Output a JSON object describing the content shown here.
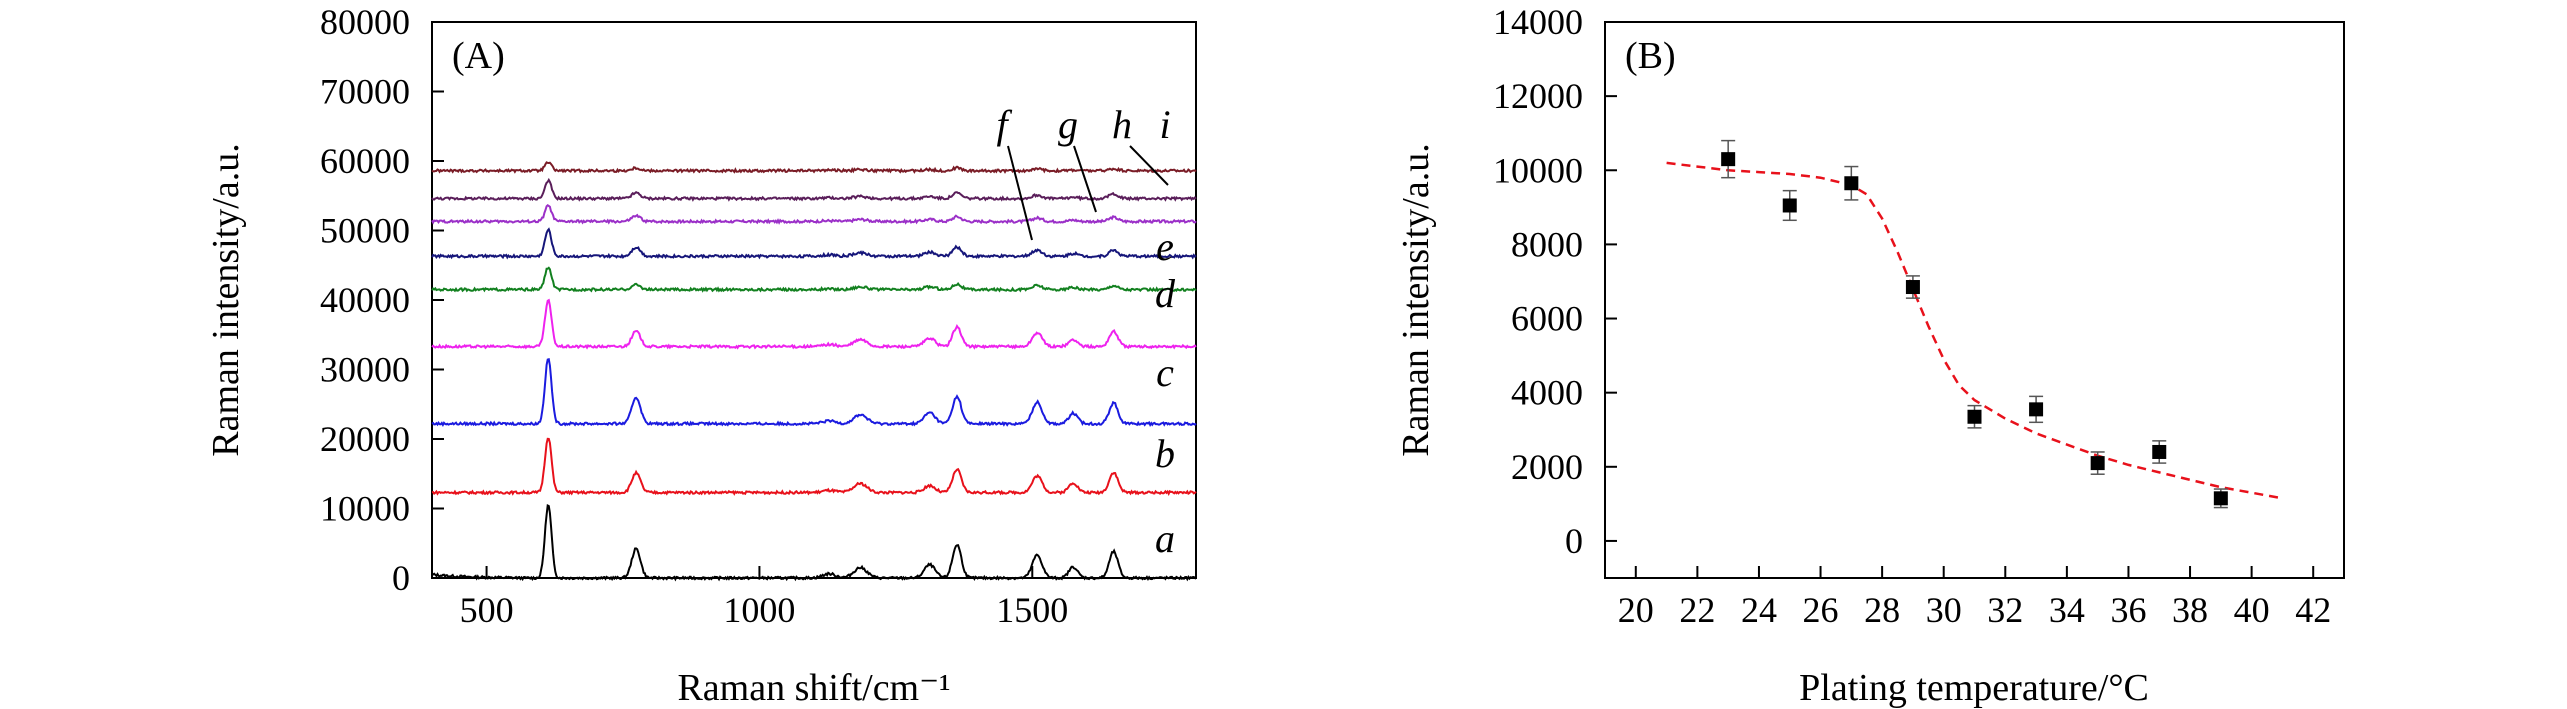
{
  "chart_data": [
    {
      "panel_label": "(A)",
      "type": "line",
      "xlabel": "Raman shift/cm⁻¹",
      "ylabel": "Raman intensity/a.u.",
      "xlim": [
        400,
        1800
      ],
      "ylim": [
        0,
        80000
      ],
      "xticks": [
        500,
        1000,
        1500
      ],
      "yticks": [
        0,
        10000,
        20000,
        30000,
        40000,
        50000,
        60000,
        70000,
        80000
      ],
      "grid": false,
      "peaks_cm": [
        613,
        774,
        1128,
        1185,
        1312,
        1362,
        1509,
        1575,
        1649
      ],
      "series": [
        {
          "name": "a",
          "color": "#000000",
          "baseline": 0,
          "peak_heights": [
            10500,
            4200,
            600,
            1500,
            1900,
            4800,
            3300,
            1600,
            3800
          ]
        },
        {
          "name": "b",
          "color": "#e8111b",
          "baseline": 12300,
          "peak_heights": [
            8000,
            2800,
            300,
            1300,
            1000,
            3300,
            2400,
            1400,
            2900
          ]
        },
        {
          "name": "c",
          "color": "#1b1bdf",
          "baseline": 22200,
          "peak_heights": [
            9400,
            3800,
            400,
            1300,
            1600,
            3900,
            3100,
            1500,
            3000
          ]
        },
        {
          "name": "d",
          "color": "#ee22ee",
          "baseline": 33300,
          "peak_heights": [
            6600,
            2200,
            300,
            1000,
            1200,
            2800,
            2000,
            1000,
            2200
          ]
        },
        {
          "name": "e",
          "color": "#12801f",
          "baseline": 41500,
          "peak_heights": [
            3200,
            700,
            100,
            400,
            400,
            800,
            600,
            300,
            600
          ]
        },
        {
          "name": "f",
          "color": "#16167a",
          "baseline": 46300,
          "peak_heights": [
            3800,
            1300,
            200,
            500,
            600,
            1300,
            900,
            400,
            900
          ]
        },
        {
          "name": "g",
          "color": "#9b30c8",
          "baseline": 51300,
          "peak_heights": [
            2300,
            800,
            100,
            300,
            300,
            700,
            500,
            200,
            600
          ]
        },
        {
          "name": "h",
          "color": "#5a1e5a",
          "baseline": 54600,
          "peak_heights": [
            2600,
            800,
            100,
            300,
            300,
            800,
            500,
            200,
            700
          ]
        },
        {
          "name": "i",
          "color": "#7a1c26",
          "baseline": 58600,
          "peak_heights": [
            1200,
            400,
            100,
            150,
            150,
            400,
            250,
            100,
            300
          ]
        }
      ]
    },
    {
      "panel_label": "(B)",
      "type": "scatter",
      "xlabel": "Plating temperature/°C",
      "ylabel": "Raman intensity/a.u.",
      "xlim": [
        19,
        43
      ],
      "ylim": [
        -1000,
        14000
      ],
      "xticks": [
        20,
        22,
        24,
        26,
        28,
        30,
        32,
        34,
        36,
        38,
        40,
        42
      ],
      "yticks": [
        0,
        2000,
        4000,
        6000,
        8000,
        10000,
        12000,
        14000
      ],
      "grid": false,
      "x": [
        23,
        25,
        27,
        29,
        31,
        33,
        35,
        37,
        39
      ],
      "y": [
        10300,
        9050,
        9650,
        6850,
        3350,
        3550,
        2100,
        2400,
        1150
      ],
      "yerr": [
        500,
        400,
        450,
        300,
        300,
        350,
        300,
        300,
        250
      ],
      "fit": {
        "style": "dashed",
        "color": "#e8111b",
        "x": [
          21,
          22,
          23,
          24,
          25,
          26,
          27,
          27.5,
          28,
          28.5,
          29,
          29.5,
          30,
          30.5,
          31,
          32,
          33,
          34,
          35,
          36,
          37,
          38,
          39,
          40,
          41
        ],
        "y": [
          10200,
          10100,
          10000,
          9950,
          9900,
          9800,
          9600,
          9350,
          8700,
          7800,
          6800,
          5800,
          4900,
          4200,
          3800,
          3300,
          2900,
          2600,
          2300,
          2050,
          1850,
          1650,
          1450,
          1300,
          1150
        ]
      }
    }
  ]
}
